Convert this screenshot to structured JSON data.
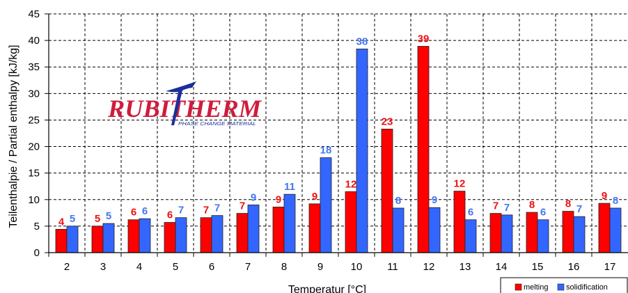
{
  "chart_data": {
    "type": "bar",
    "title": "",
    "xlabel": "Temperatur [°C]",
    "ylabel": "Teilenthalpie / Partial enthalpy [kJ/kg]",
    "ylim": [
      0,
      45
    ],
    "yticks": [
      0,
      5,
      10,
      15,
      20,
      25,
      30,
      35,
      40,
      45
    ],
    "grid": "dashed horizontal and vertical",
    "legend_position": "bottom-right",
    "categories": [
      "2",
      "3",
      "4",
      "5",
      "6",
      "7",
      "8",
      "9",
      "10",
      "11",
      "12",
      "13",
      "14",
      "15",
      "16",
      "17"
    ],
    "series": [
      {
        "name": "melting",
        "color": "#ff0000",
        "label_color": "#ee1111",
        "values": [
          4.4,
          5.0,
          6.2,
          5.7,
          6.6,
          7.4,
          8.6,
          9.2,
          11.5,
          23.3,
          38.9,
          11.6,
          7.4,
          7.6,
          7.8,
          9.3
        ],
        "labels": [
          "4",
          "5",
          "6",
          "6",
          "7",
          "7",
          "9",
          "9",
          "12",
          "23",
          "39",
          "12",
          "7",
          "8",
          "8",
          "9"
        ]
      },
      {
        "name": "solidification",
        "color": "#3366ff",
        "label_color": "#4477ee",
        "values": [
          5.0,
          5.5,
          6.4,
          6.6,
          7.0,
          9.0,
          11.0,
          17.9,
          38.4,
          8.4,
          8.5,
          6.2,
          7.1,
          6.2,
          6.8,
          8.4
        ],
        "labels": [
          "5",
          "5",
          "6",
          "7",
          "7",
          "9",
          "11",
          "18",
          "38",
          "8",
          "9",
          "6",
          "7",
          "6",
          "7",
          "8"
        ]
      }
    ]
  },
  "logo": {
    "name": "RUBITHERM",
    "tagline": "PHASE CHANGE MATERIAL",
    "red": "#d01c3c",
    "blue": "#1b2f9a"
  }
}
